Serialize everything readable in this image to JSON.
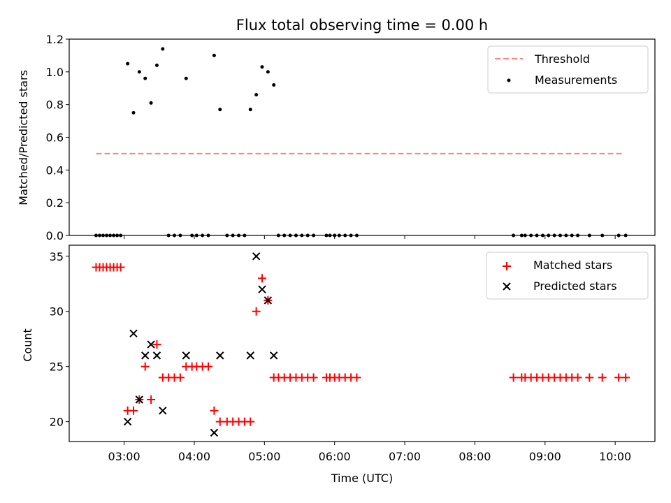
{
  "chart_data": [
    {
      "type": "scatter",
      "title": "Flux total observing time = 0.00 h",
      "xlabel": "",
      "ylabel": "Matched/Predicted stars",
      "ylim": [
        0.0,
        1.2
      ],
      "yticks": [
        "0.0",
        "0.2",
        "0.4",
        "0.6",
        "0.8",
        "1.0",
        "1.2"
      ],
      "legend": {
        "placement": "top-right",
        "threshold_label": "Threshold",
        "measurements_label": "Measurements"
      },
      "threshold": {
        "name": "Threshold",
        "y": 0.5,
        "x_start": "02:36",
        "x_end": "10:08",
        "color": "#ff7f7f",
        "style": "dashed"
      },
      "series": [
        {
          "name": "Measurements",
          "color": "#000000",
          "points": [
            [
              "02:36",
              0.0
            ],
            [
              "02:39",
              0.0
            ],
            [
              "02:42",
              0.0
            ],
            [
              "02:45",
              0.0
            ],
            [
              "02:48",
              0.0
            ],
            [
              "02:51",
              0.0
            ],
            [
              "02:54",
              0.0
            ],
            [
              "02:57",
              0.0
            ],
            [
              "03:03",
              1.05
            ],
            [
              "03:08",
              0.75
            ],
            [
              "03:13",
              1.0
            ],
            [
              "03:18",
              0.96
            ],
            [
              "03:23",
              0.81
            ],
            [
              "03:28",
              1.04
            ],
            [
              "03:33",
              1.14
            ],
            [
              "03:38",
              0.0
            ],
            [
              "03:43",
              0.0
            ],
            [
              "03:48",
              0.0
            ],
            [
              "03:53",
              0.96
            ],
            [
              "03:58",
              0.0
            ],
            [
              "04:02",
              0.0
            ],
            [
              "04:07",
              0.0
            ],
            [
              "04:12",
              0.0
            ],
            [
              "04:17",
              1.1
            ],
            [
              "04:22",
              0.77
            ],
            [
              "04:28",
              0.0
            ],
            [
              "04:33",
              0.0
            ],
            [
              "04:38",
              0.0
            ],
            [
              "04:43",
              0.0
            ],
            [
              "04:48",
              0.77
            ],
            [
              "04:53",
              0.86
            ],
            [
              "04:58",
              1.03
            ],
            [
              "05:03",
              1.0
            ],
            [
              "05:08",
              0.92
            ],
            [
              "05:12",
              0.0
            ],
            [
              "05:17",
              0.0
            ],
            [
              "05:22",
              0.0
            ],
            [
              "05:27",
              0.0
            ],
            [
              "05:32",
              0.0
            ],
            [
              "05:37",
              0.0
            ],
            [
              "05:42",
              0.0
            ],
            [
              "05:53",
              0.0
            ],
            [
              "05:56",
              0.0
            ],
            [
              "06:00",
              0.0
            ],
            [
              "06:04",
              0.0
            ],
            [
              "06:09",
              0.0
            ],
            [
              "06:14",
              0.0
            ],
            [
              "06:19",
              0.0
            ],
            [
              "08:33",
              0.0
            ],
            [
              "08:40",
              0.0
            ],
            [
              "08:43",
              0.0
            ],
            [
              "08:48",
              0.0
            ],
            [
              "08:53",
              0.0
            ],
            [
              "08:58",
              0.0
            ],
            [
              "09:03",
              0.0
            ],
            [
              "09:08",
              0.0
            ],
            [
              "09:13",
              0.0
            ],
            [
              "09:18",
              0.0
            ],
            [
              "09:23",
              0.0
            ],
            [
              "09:28",
              0.0
            ],
            [
              "09:38",
              0.0
            ],
            [
              "09:49",
              0.0
            ],
            [
              "10:03",
              0.0
            ],
            [
              "10:09",
              0.0
            ]
          ]
        }
      ]
    },
    {
      "type": "scatter",
      "xlabel": "Time (UTC)",
      "ylabel": "Count",
      "ylim": [
        18.2,
        36.0
      ],
      "xlim": [
        "02:13",
        "10:34"
      ],
      "xticks": [
        "03:00",
        "04:00",
        "05:00",
        "06:00",
        "07:00",
        "08:00",
        "09:00",
        "10:00"
      ],
      "yticks": [
        "20",
        "25",
        "30",
        "35"
      ],
      "legend": {
        "placement": "top-right"
      },
      "series": [
        {
          "name": "Matched stars",
          "color": "#ff0000",
          "marker": "+",
          "points": [
            [
              "02:36",
              34
            ],
            [
              "02:39",
              34
            ],
            [
              "02:42",
              34
            ],
            [
              "02:45",
              34
            ],
            [
              "02:48",
              34
            ],
            [
              "02:51",
              34
            ],
            [
              "02:54",
              34
            ],
            [
              "02:57",
              34
            ],
            [
              "03:03",
              21
            ],
            [
              "03:08",
              21
            ],
            [
              "03:13",
              22
            ],
            [
              "03:18",
              25
            ],
            [
              "03:23",
              22
            ],
            [
              "03:28",
              27
            ],
            [
              "03:33",
              24
            ],
            [
              "03:38",
              24
            ],
            [
              "03:43",
              24
            ],
            [
              "03:48",
              24
            ],
            [
              "03:53",
              25
            ],
            [
              "03:58",
              25
            ],
            [
              "04:02",
              25
            ],
            [
              "04:07",
              25
            ],
            [
              "04:12",
              25
            ],
            [
              "04:17",
              21
            ],
            [
              "04:22",
              20
            ],
            [
              "04:28",
              20
            ],
            [
              "04:33",
              20
            ],
            [
              "04:38",
              20
            ],
            [
              "04:43",
              20
            ],
            [
              "04:48",
              20
            ],
            [
              "04:53",
              30
            ],
            [
              "04:58",
              33
            ],
            [
              "05:03",
              31
            ],
            [
              "05:08",
              24
            ],
            [
              "05:12",
              24
            ],
            [
              "05:17",
              24
            ],
            [
              "05:22",
              24
            ],
            [
              "05:27",
              24
            ],
            [
              "05:32",
              24
            ],
            [
              "05:37",
              24
            ],
            [
              "05:42",
              24
            ],
            [
              "05:53",
              24
            ],
            [
              "05:56",
              24
            ],
            [
              "06:00",
              24
            ],
            [
              "06:04",
              24
            ],
            [
              "06:09",
              24
            ],
            [
              "06:14",
              24
            ],
            [
              "06:19",
              24
            ],
            [
              "08:33",
              24
            ],
            [
              "08:40",
              24
            ],
            [
              "08:43",
              24
            ],
            [
              "08:48",
              24
            ],
            [
              "08:53",
              24
            ],
            [
              "08:58",
              24
            ],
            [
              "09:03",
              24
            ],
            [
              "09:08",
              24
            ],
            [
              "09:13",
              24
            ],
            [
              "09:18",
              24
            ],
            [
              "09:23",
              24
            ],
            [
              "09:28",
              24
            ],
            [
              "09:38",
              24
            ],
            [
              "09:49",
              24
            ],
            [
              "10:03",
              24
            ],
            [
              "10:09",
              24
            ]
          ]
        },
        {
          "name": "Predicted stars",
          "color": "#000000",
          "marker": "x",
          "points": [
            [
              "03:03",
              20
            ],
            [
              "03:08",
              28
            ],
            [
              "03:13",
              22
            ],
            [
              "03:18",
              26
            ],
            [
              "03:23",
              27
            ],
            [
              "03:28",
              26
            ],
            [
              "03:33",
              21
            ],
            [
              "03:53",
              26
            ],
            [
              "04:17",
              19
            ],
            [
              "04:22",
              26
            ],
            [
              "04:48",
              26
            ],
            [
              "04:53",
              35
            ],
            [
              "04:58",
              32
            ],
            [
              "05:03",
              31
            ],
            [
              "05:08",
              26
            ]
          ]
        }
      ]
    }
  ]
}
